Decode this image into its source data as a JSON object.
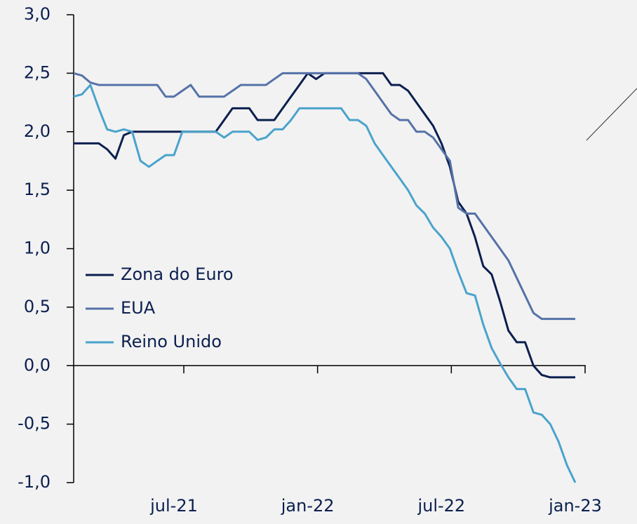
{
  "chart_data": {
    "type": "line",
    "categories": [
      null,
      null,
      null,
      null,
      null,
      null,
      null,
      null,
      null,
      null,
      null,
      null,
      "jul-21",
      null,
      null,
      null,
      null,
      null,
      null,
      null,
      null,
      null,
      null,
      null,
      null,
      null,
      null,
      null,
      "jan-22",
      null,
      null,
      null,
      null,
      null,
      null,
      null,
      null,
      null,
      null,
      null,
      null,
      null,
      null,
      null,
      "jul-22",
      null,
      null,
      null,
      null,
      null,
      null,
      null,
      null,
      null,
      null,
      null,
      null,
      null,
      null,
      null,
      "jan-23"
    ],
    "series": [
      {
        "name": "Zona do Euro",
        "color": "#0b1f4f",
        "values": [
          1.9,
          1.9,
          1.9,
          1.9,
          1.85,
          1.77,
          1.97,
          2.0,
          2.0,
          2.0,
          2.0,
          2.0,
          2.0,
          2.0,
          2.0,
          2.0,
          2.0,
          2.0,
          2.1,
          2.2,
          2.2,
          2.2,
          2.1,
          2.1,
          2.1,
          2.2,
          2.3,
          2.4,
          2.5,
          2.45,
          2.5,
          2.5,
          2.5,
          2.5,
          2.5,
          2.5,
          2.5,
          2.5,
          2.4,
          2.4,
          2.35,
          2.25,
          2.15,
          2.05,
          1.9,
          1.7,
          1.4,
          1.3,
          1.1,
          0.85,
          0.78,
          0.55,
          0.3,
          0.2,
          0.2,
          0.0,
          -0.08,
          -0.1,
          -0.1,
          -0.1,
          -0.1
        ]
      },
      {
        "name": "EUA",
        "color": "#5572a8",
        "values": [
          2.5,
          2.48,
          2.42,
          2.4,
          2.4,
          2.4,
          2.4,
          2.4,
          2.4,
          2.4,
          2.4,
          2.3,
          2.3,
          2.35,
          2.4,
          2.3,
          2.3,
          2.3,
          2.3,
          2.35,
          2.4,
          2.4,
          2.4,
          2.4,
          2.45,
          2.5,
          2.5,
          2.5,
          2.5,
          2.5,
          2.5,
          2.5,
          2.5,
          2.5,
          2.5,
          2.45,
          2.35,
          2.25,
          2.15,
          2.1,
          2.1,
          2.0,
          2.0,
          1.95,
          1.85,
          1.75,
          1.35,
          1.3,
          1.3,
          1.2,
          1.1,
          1.0,
          0.9,
          0.75,
          0.6,
          0.45,
          0.4,
          0.4,
          0.4,
          0.4,
          0.4
        ]
      },
      {
        "name": "Reino Unido",
        "color": "#4aa3cc",
        "values": [
          2.3,
          2.32,
          2.4,
          2.2,
          2.02,
          2.0,
          2.02,
          2.0,
          1.75,
          1.7,
          1.75,
          1.8,
          1.8,
          2.0,
          2.0,
          2.0,
          2.0,
          2.0,
          1.95,
          2.0,
          2.0,
          2.0,
          1.93,
          1.95,
          2.02,
          2.02,
          2.1,
          2.2,
          2.2,
          2.2,
          2.2,
          2.2,
          2.2,
          2.1,
          2.1,
          2.05,
          1.9,
          1.8,
          1.7,
          1.6,
          1.5,
          1.37,
          1.3,
          1.18,
          1.1,
          1.0,
          0.8,
          0.62,
          0.6,
          0.35,
          0.15,
          0.02,
          -0.1,
          -0.2,
          -0.2,
          -0.4,
          -0.42,
          -0.5,
          -0.65,
          -0.85,
          -1.0
        ]
      }
    ],
    "ylim": [
      -1,
      3
    ],
    "yticks": [
      {
        "value": -1,
        "label": "-1,0"
      },
      {
        "value": -0.5,
        "label": "-0,5"
      },
      {
        "value": 0,
        "label": "0,0"
      },
      {
        "value": 0.5,
        "label": "0,5"
      },
      {
        "value": 1,
        "label": "1,0"
      },
      {
        "value": 1.5,
        "label": "1,5"
      },
      {
        "value": 2,
        "label": "2,0"
      },
      {
        "value": 2.5,
        "label": "2,5"
      },
      {
        "value": 3,
        "label": "3,0"
      }
    ],
    "legend": "left"
  }
}
